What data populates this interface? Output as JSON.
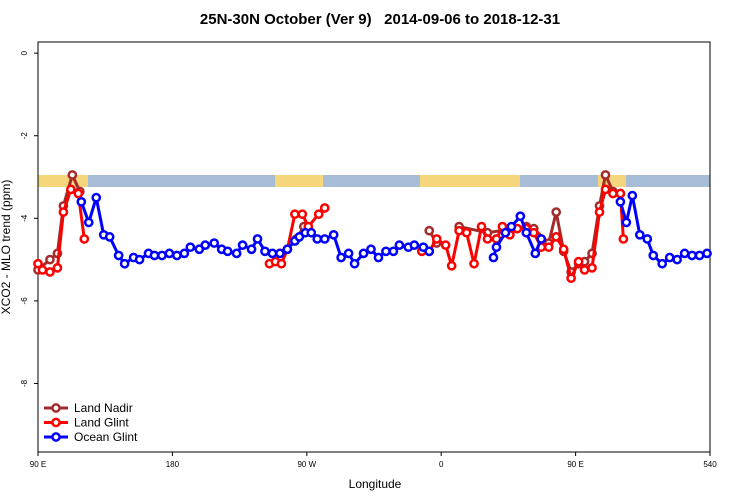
{
  "chart_data": {
    "type": "line",
    "title": "25N-30N October (Ver 9)   2014-09-06 to 2018-12-31",
    "xlabel": "Longitude",
    "ylabel": "XCO2 - MLO trend (ppm)",
    "xlim": [
      90,
      540
    ],
    "ylim": [
      -9.66,
      0.27
    ],
    "xticks": [
      {
        "value": 90,
        "label": "90 E"
      },
      180,
      {
        "value": 270,
        "label": "90 W"
      },
      {
        "value": 360,
        "label": "0"
      },
      {
        "value": 450,
        "label": "90 E"
      },
      540
    ],
    "yticks": [
      0,
      -2,
      -4,
      -6,
      -8
    ],
    "legend": "bottom-left",
    "series": [
      {
        "name": "Land Nadir",
        "color": "#a52a2a",
        "x": [
          90,
          98,
          103,
          107,
          113,
          118,
          190,
          263,
          268,
          310,
          352,
          357,
          365,
          372,
          391,
          417,
          422,
          432,
          437,
          442,
          447,
          452,
          456,
          461,
          466,
          470,
          475,
          480
        ],
        "values": [
          -5.25,
          -5.0,
          -4.85,
          -3.7,
          -2.95,
          -3.35,
          null,
          -4.5,
          -4.2,
          null,
          -4.3,
          -4.6,
          null,
          -4.2,
          -4.35,
          -4.2,
          -4.25,
          -4.6,
          -3.85,
          -4.8,
          -5.3,
          -5.1,
          -5.05,
          -4.85,
          -3.7,
          -2.95,
          -3.35,
          -3.4
        ]
      },
      {
        "name": "Land Glint",
        "color": "#ff0000",
        "x": [
          90,
          93,
          98,
          103,
          107,
          112,
          117,
          121,
          183,
          245,
          249,
          253,
          257,
          262,
          267,
          271,
          278,
          282,
          315,
          347,
          352,
          357,
          363,
          367,
          372,
          377,
          382,
          387,
          391,
          397,
          401,
          406,
          411,
          417,
          422,
          427,
          432,
          437,
          442,
          447,
          452,
          456,
          461,
          466,
          470,
          475,
          480,
          482
        ],
        "values": [
          -5.1,
          -5.25,
          -5.3,
          -5.2,
          -3.85,
          -3.3,
          -3.4,
          -4.5,
          null,
          -5.1,
          -5.05,
          -5.1,
          -4.75,
          -3.9,
          -3.9,
          -4.2,
          -3.9,
          -3.75,
          null,
          -4.8,
          -4.8,
          -4.5,
          -4.65,
          -5.15,
          -4.3,
          -4.35,
          -5.1,
          -4.2,
          -4.5,
          -4.5,
          -4.2,
          -4.4,
          -4.25,
          -4.25,
          -4.35,
          -4.7,
          -4.7,
          -4.45,
          -4.75,
          -5.45,
          -5.05,
          -5.25,
          -5.2,
          -3.85,
          -3.3,
          -3.4,
          -3.4,
          -4.5
        ]
      },
      {
        "name": "Ocean Glint",
        "color": "#0000ff",
        "x": [
          119,
          124,
          129,
          134,
          138,
          144,
          148,
          154,
          158,
          164,
          168,
          173,
          178,
          183,
          188,
          192,
          198,
          202,
          208,
          213,
          217,
          223,
          227,
          233,
          237,
          242,
          247,
          252,
          257,
          262,
          265,
          269,
          273,
          277,
          282,
          288,
          293,
          298,
          302,
          308,
          313,
          318,
          323,
          328,
          332,
          338,
          342,
          348,
          352,
          374,
          395,
          397,
          403,
          407,
          413,
          417,
          423,
          427,
          453,
          480,
          484,
          488,
          493,
          498,
          502,
          508,
          513,
          518,
          523,
          528,
          533,
          538
        ],
        "values": [
          -3.6,
          -4.1,
          -3.5,
          -4.4,
          -4.45,
          -4.9,
          -5.1,
          -4.95,
          -5.0,
          -4.85,
          -4.9,
          -4.9,
          -4.85,
          -4.9,
          -4.85,
          -4.7,
          -4.75,
          -4.65,
          -4.6,
          -4.75,
          -4.8,
          -4.85,
          -4.65,
          -4.75,
          -4.5,
          -4.8,
          -4.85,
          -4.85,
          -4.75,
          -4.55,
          -4.45,
          -4.35,
          -4.35,
          -4.5,
          -4.5,
          -4.4,
          -4.95,
          -4.85,
          -5.1,
          -4.85,
          -4.75,
          -4.95,
          -4.8,
          -4.8,
          -4.65,
          -4.7,
          -4.65,
          -4.7,
          -4.8,
          null,
          -4.95,
          -4.7,
          -4.35,
          -4.2,
          -3.95,
          -4.35,
          -4.85,
          -4.5,
          null,
          -3.6,
          -4.1,
          -3.45,
          -4.4,
          -4.5,
          -4.9,
          -5.1,
          -4.95,
          -5.0,
          -4.85,
          -4.9,
          -4.9,
          -4.85
        ]
      }
    ]
  }
}
